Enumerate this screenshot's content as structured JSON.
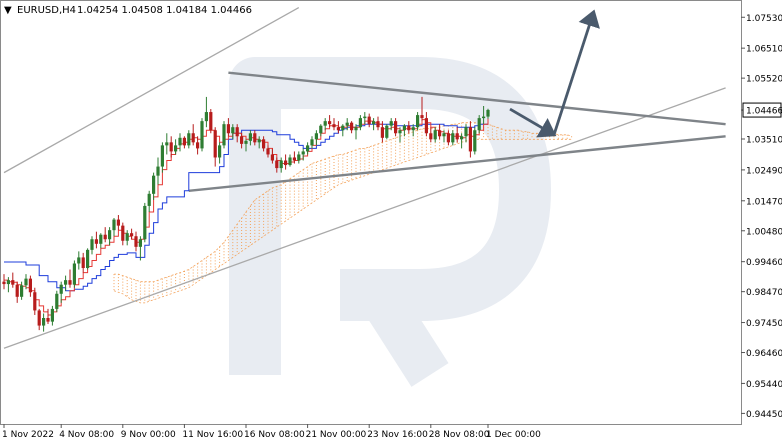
{
  "header": {
    "arrow": "▼",
    "symbol": "EURUSD,H4",
    "ohlc": "1.04254 1.04508 1.04184 1.04466"
  },
  "colors": {
    "bull": "#2e7d32",
    "bear": "#b71c1c",
    "tenkan": "#e53935",
    "kijun": "#1e3ddb",
    "cloud": "#f3a35c",
    "channel": "#a9a9a9",
    "pattern": "#7f8489",
    "arrow": "#4a5a6c",
    "price_box": "#ffffff",
    "watermark": "#e8ecf2"
  },
  "chart_data": {
    "type": "candlestick",
    "symbol": "EURUSD",
    "timeframe": "H4",
    "last_price": 1.04466,
    "ylim": [
      0.941,
      1.081
    ],
    "y_ticks": [
      "1.07530",
      "1.06510",
      "1.05520",
      "1.04466",
      "1.03510",
      "1.02490",
      "1.01470",
      "1.00480",
      "0.99460",
      "0.98470",
      "0.97450",
      "0.96460",
      "0.95440",
      "0.94450"
    ],
    "x_ticks": [
      "1 Nov 2022",
      "4 Nov 08:00",
      "9 Nov 00:00",
      "11 Nov 16:00",
      "16 Nov 08:00",
      "21 Nov 00:00",
      "23 Nov 16:00",
      "28 Nov 08:00",
      "1 Dec 00:00"
    ],
    "x_tick_bars": [
      0,
      13,
      27,
      41,
      55,
      69,
      83,
      97,
      110
    ],
    "candles": [
      [
        0.988,
        0.9905,
        0.9855,
        0.9872
      ],
      [
        0.9872,
        0.9895,
        0.9845,
        0.9885
      ],
      [
        0.9885,
        0.991,
        0.986,
        0.987
      ],
      [
        0.987,
        0.988,
        0.981,
        0.983
      ],
      [
        0.983,
        0.988,
        0.982,
        0.9868
      ],
      [
        0.9868,
        0.9905,
        0.9855,
        0.989
      ],
      [
        0.989,
        0.99,
        0.983,
        0.9845
      ],
      [
        0.9845,
        0.986,
        0.977,
        0.9785
      ],
      [
        0.9785,
        0.979,
        0.972,
        0.9735
      ],
      [
        0.9735,
        0.9775,
        0.9715,
        0.976
      ],
      [
        0.976,
        0.979,
        0.974,
        0.9748
      ],
      [
        0.9748,
        0.98,
        0.9735,
        0.979
      ],
      [
        0.979,
        0.985,
        0.978,
        0.984
      ],
      [
        0.984,
        0.988,
        0.981,
        0.987
      ],
      [
        0.987,
        0.99,
        0.985,
        0.9885
      ],
      [
        0.9885,
        0.992,
        0.986,
        0.987
      ],
      [
        0.987,
        0.995,
        0.986,
        0.994
      ],
      [
        0.994,
        0.998,
        0.992,
        0.996
      ],
      [
        0.996,
        0.9975,
        0.991,
        0.9925
      ],
      [
        0.9925,
        0.999,
        0.992,
        0.9985
      ],
      [
        0.9985,
        1.003,
        0.997,
        1.002
      ],
      [
        1.002,
        1.0045,
        0.999,
        1.0005
      ],
      [
        1.0005,
        1.004,
        0.999,
        1.0035
      ],
      [
        1.0035,
        1.006,
        1.001,
        1.002
      ],
      [
        1.002,
        1.006,
        1.0,
        1.005
      ],
      [
        1.005,
        1.009,
        1.003,
        1.0085
      ],
      [
        1.0085,
        1.01,
        1.005,
        1.0065
      ],
      [
        1.0065,
        1.0075,
        1.0,
        1.0015
      ],
      [
        1.0015,
        1.005,
        1.0,
        1.004
      ],
      [
        1.004,
        1.0055,
        1.002,
        1.003
      ],
      [
        1.003,
        1.0045,
        0.998,
        0.9995
      ],
      [
        0.9995,
        1.003,
        0.995,
        1.002
      ],
      [
        1.002,
        1.014,
        1.001,
        1.013
      ],
      [
        1.013,
        1.018,
        1.011,
        1.017
      ],
      [
        1.017,
        1.024,
        1.015,
        1.023
      ],
      [
        1.023,
        1.029,
        1.02,
        1.026
      ],
      [
        1.026,
        1.034,
        1.024,
        1.033
      ],
      [
        1.033,
        1.037,
        1.03,
        1.034
      ],
      [
        1.034,
        1.036,
        1.029,
        1.031
      ],
      [
        1.031,
        1.035,
        1.03,
        1.033
      ],
      [
        1.033,
        1.037,
        1.031,
        1.0355
      ],
      [
        1.0355,
        1.036,
        1.032,
        1.033
      ],
      [
        1.033,
        1.038,
        1.032,
        1.037
      ],
      [
        1.037,
        1.04,
        1.033,
        1.034
      ],
      [
        1.034,
        1.036,
        1.03,
        1.032
      ],
      [
        1.032,
        1.042,
        1.031,
        1.041
      ],
      [
        1.041,
        1.049,
        1.039,
        1.044
      ],
      [
        1.044,
        1.045,
        1.037,
        1.038
      ],
      [
        1.038,
        1.039,
        1.026,
        1.029
      ],
      [
        1.029,
        1.034,
        1.027,
        1.033
      ],
      [
        1.033,
        1.041,
        1.032,
        1.04
      ],
      [
        1.04,
        1.042,
        1.036,
        1.037
      ],
      [
        1.037,
        1.04,
        1.035,
        1.039
      ],
      [
        1.039,
        1.04,
        1.034,
        1.036
      ],
      [
        1.036,
        1.037,
        1.032,
        1.0335
      ],
      [
        1.0335,
        1.035,
        1.031,
        1.0345
      ],
      [
        1.0345,
        1.038,
        1.033,
        1.037
      ],
      [
        1.037,
        1.038,
        1.033,
        1.034
      ],
      [
        1.034,
        1.036,
        1.032,
        1.035
      ],
      [
        1.035,
        1.036,
        1.031,
        1.032
      ],
      [
        1.032,
        1.033,
        1.029,
        1.03
      ],
      [
        1.03,
        1.032,
        1.027,
        1.028
      ],
      [
        1.028,
        1.029,
        1.024,
        1.0255
      ],
      [
        1.0255,
        1.029,
        1.024,
        1.028
      ],
      [
        1.028,
        1.03,
        1.025,
        1.0265
      ],
      [
        1.0265,
        1.03,
        1.026,
        1.029
      ],
      [
        1.029,
        1.031,
        1.027,
        1.028
      ],
      [
        1.028,
        1.031,
        1.027,
        1.03
      ],
      [
        1.03,
        1.032,
        1.028,
        1.031
      ],
      [
        1.031,
        1.034,
        1.03,
        1.033
      ],
      [
        1.033,
        1.036,
        1.032,
        1.035
      ],
      [
        1.035,
        1.038,
        1.033,
        1.037
      ],
      [
        1.037,
        1.04,
        1.036,
        1.0395
      ],
      [
        1.0395,
        1.042,
        1.038,
        1.041
      ],
      [
        1.041,
        1.043,
        1.039,
        1.04
      ],
      [
        1.04,
        1.042,
        1.038,
        1.039
      ],
      [
        1.039,
        1.041,
        1.037,
        1.038
      ],
      [
        1.038,
        1.04,
        1.036,
        1.0395
      ],
      [
        1.0395,
        1.042,
        1.038,
        1.0405
      ],
      [
        1.0405,
        1.041,
        1.037,
        1.038
      ],
      [
        1.038,
        1.04,
        1.035,
        1.039
      ],
      [
        1.039,
        1.043,
        1.038,
        1.042
      ],
      [
        1.042,
        1.044,
        1.04,
        1.0425
      ],
      [
        1.0425,
        1.0435,
        1.039,
        1.04
      ],
      [
        1.04,
        1.042,
        1.038,
        1.041
      ],
      [
        1.041,
        1.0425,
        1.038,
        1.039
      ],
      [
        1.039,
        1.041,
        1.034,
        1.0355
      ],
      [
        1.0355,
        1.04,
        1.035,
        1.0395
      ],
      [
        1.0395,
        1.042,
        1.038,
        1.041
      ],
      [
        1.041,
        1.042,
        1.036,
        1.037
      ],
      [
        1.037,
        1.039,
        1.034,
        1.038
      ],
      [
        1.038,
        1.04,
        1.036,
        1.0395
      ],
      [
        1.0395,
        1.041,
        1.037,
        1.038
      ],
      [
        1.038,
        1.04,
        1.036,
        1.039
      ],
      [
        1.039,
        1.044,
        1.038,
        1.043
      ],
      [
        1.043,
        1.049,
        1.041,
        1.042
      ],
      [
        1.042,
        1.044,
        1.036,
        1.037
      ],
      [
        1.037,
        1.039,
        1.034,
        1.035
      ],
      [
        1.035,
        1.039,
        1.034,
        1.038
      ],
      [
        1.038,
        1.04,
        1.035,
        1.036
      ],
      [
        1.036,
        1.038,
        1.034,
        1.037
      ],
      [
        1.037,
        1.038,
        1.033,
        1.034
      ],
      [
        1.034,
        1.038,
        1.033,
        1.037
      ],
      [
        1.037,
        1.039,
        1.034,
        1.035
      ],
      [
        1.035,
        1.037,
        1.032,
        1.036
      ],
      [
        1.036,
        1.04,
        1.034,
        1.039
      ],
      [
        1.039,
        1.041,
        1.029,
        1.031
      ],
      [
        1.031,
        1.039,
        1.03,
        1.038
      ],
      [
        1.038,
        1.043,
        1.037,
        1.042
      ],
      [
        1.042,
        1.046,
        1.04,
        1.0425
      ],
      [
        1.0425,
        1.0451,
        1.0418,
        1.0447
      ]
    ],
    "tenkan": [
      0.9885,
      0.988,
      0.9878,
      0.987,
      0.9865,
      0.986,
      0.985,
      0.982,
      0.98,
      0.978,
      0.977,
      0.978,
      0.98,
      0.982,
      0.983,
      0.985,
      0.987,
      0.989,
      0.991,
      0.993,
      0.995,
      0.997,
      0.999,
      1.0,
      1.001,
      1.003,
      1.005,
      1.004,
      1.003,
      1.002,
      1.001,
      1.002,
      1.006,
      1.011,
      1.016,
      1.02,
      1.025,
      1.028,
      1.03,
      1.032,
      1.0335,
      1.034,
      1.035,
      1.0355,
      1.035,
      1.036,
      1.038,
      1.038,
      1.036,
      1.034,
      1.035,
      1.036,
      1.037,
      1.037,
      1.036,
      1.035,
      1.0355,
      1.035,
      1.0345,
      1.034,
      1.032,
      1.03,
      1.028,
      1.027,
      1.027,
      1.0275,
      1.028,
      1.0285,
      1.0295,
      1.031,
      1.033,
      1.035,
      1.037,
      1.0385,
      1.0395,
      1.0395,
      1.039,
      1.039,
      1.0395,
      1.039,
      1.039,
      1.04,
      1.041,
      1.041,
      1.0405,
      1.04,
      1.0385,
      1.0385,
      1.039,
      1.0385,
      1.038,
      1.0385,
      1.0385,
      1.0385,
      1.04,
      1.0415,
      1.0405,
      1.039,
      1.038,
      1.0375,
      1.037,
      1.0365,
      1.036,
      1.036,
      1.0355,
      1.0365,
      1.036,
      1.0365,
      1.038,
      1.04,
      1.042
    ],
    "kijun": [
      0.9945,
      0.9945,
      0.9945,
      0.9945,
      0.9945,
      0.9935,
      0.9935,
      0.9935,
      0.99,
      0.99,
      0.988,
      0.988,
      0.986,
      0.986,
      0.985,
      0.985,
      0.9855,
      0.9855,
      0.9865,
      0.9875,
      0.989,
      0.99,
      0.992,
      0.993,
      0.995,
      0.996,
      0.997,
      0.997,
      0.9975,
      0.9975,
      0.996,
      0.996,
      1.0,
      1.004,
      1.0075,
      1.012,
      1.014,
      1.016,
      1.016,
      1.016,
      1.016,
      1.018,
      1.024,
      1.024,
      1.024,
      1.024,
      1.024,
      1.024,
      1.024,
      1.026,
      1.03,
      1.035,
      1.037,
      1.037,
      1.038,
      1.038,
      1.038,
      1.038,
      1.038,
      1.038,
      1.038,
      1.0375,
      1.0365,
      1.0365,
      1.0365,
      1.035,
      1.034,
      1.033,
      1.032,
      1.032,
      1.032,
      1.033,
      1.034,
      1.035,
      1.036,
      1.037,
      1.038,
      1.0385,
      1.039,
      1.039,
      1.0395,
      1.0395,
      1.04,
      1.04,
      1.04,
      1.04,
      1.04,
      1.04,
      1.04,
      1.0395,
      1.0395,
      1.0395,
      1.0395,
      1.0395,
      1.0395,
      1.04,
      1.04,
      1.04,
      1.04,
      1.04,
      1.0395,
      1.0395,
      1.0395,
      1.039,
      1.039,
      1.039,
      1.039,
      1.0395,
      1.04,
      1.04,
      1.04
    ],
    "cloud": {
      "start_bar": 25,
      "upper": [
        0.9905,
        0.9905,
        0.99,
        0.9895,
        0.989,
        0.9885,
        0.988,
        0.988,
        0.988,
        0.988,
        0.9885,
        0.989,
        0.9895,
        0.99,
        0.9905,
        0.991,
        0.9915,
        0.992,
        0.993,
        0.994,
        0.995,
        0.996,
        0.997,
        0.998,
        0.9995,
        1.001,
        1.003,
        1.005,
        1.007,
        1.009,
        1.011,
        1.013,
        1.015,
        1.016,
        1.017,
        1.018,
        1.019,
        1.0195,
        1.02,
        1.021,
        1.022,
        1.023,
        1.024,
        1.025,
        1.026,
        1.027,
        1.0275,
        1.028,
        1.0285,
        1.029,
        1.0295,
        1.03,
        1.03,
        1.0305,
        1.031,
        1.0315,
        1.032,
        1.032,
        1.0325,
        1.033,
        1.0335,
        1.034,
        1.0345,
        1.035,
        1.0355,
        1.036,
        1.0365,
        1.037,
        1.0375,
        1.038,
        1.0385,
        1.0385,
        1.0385,
        1.039,
        1.039,
        1.0395,
        1.0395,
        1.04,
        1.04,
        1.0405,
        1.0405,
        1.0405,
        1.0405,
        1.0405,
        1.04,
        1.04,
        1.0395,
        1.039,
        1.0385,
        1.038,
        1.038,
        1.038,
        1.038,
        1.0375,
        1.0375,
        1.037,
        1.037,
        1.037,
        1.037,
        1.037,
        1.037,
        1.0365,
        1.0365,
        1.0365,
        1.036
      ],
      "lower": [
        0.985,
        0.9845,
        0.984,
        0.983,
        0.982,
        0.9815,
        0.981,
        0.981,
        0.9815,
        0.982,
        0.9825,
        0.983,
        0.9835,
        0.984,
        0.9845,
        0.985,
        0.9855,
        0.986,
        0.987,
        0.988,
        0.989,
        0.99,
        0.991,
        0.992,
        0.993,
        0.994,
        0.995,
        0.996,
        0.997,
        0.998,
        0.999,
        1.0,
        1.001,
        1.002,
        1.003,
        1.004,
        1.005,
        1.006,
        1.007,
        1.008,
        1.009,
        1.01,
        1.011,
        1.012,
        1.013,
        1.014,
        1.015,
        1.016,
        1.017,
        1.018,
        1.019,
        1.02,
        1.0205,
        1.021,
        1.0215,
        1.022,
        1.0225,
        1.023,
        1.0235,
        1.024,
        1.0245,
        1.025,
        1.0255,
        1.026,
        1.0265,
        1.027,
        1.0275,
        1.028,
        1.0285,
        1.029,
        1.0295,
        1.03,
        1.0305,
        1.031,
        1.0315,
        1.032,
        1.0325,
        1.033,
        1.0335,
        1.034,
        1.0345,
        1.0345,
        1.035,
        1.035,
        1.035,
        1.035,
        1.035,
        1.035,
        1.035,
        1.035,
        1.035,
        1.035,
        1.035,
        1.035,
        1.035,
        1.035,
        1.035,
        1.035,
        1.035,
        1.035,
        1.035,
        1.035,
        1.035,
        1.035,
        1.035
      ]
    },
    "lines": {
      "channel_upper": [
        [
          0,
          1.024
        ],
        [
          67,
          1.0785
        ]
      ],
      "channel_lower": [
        [
          0,
          0.966
        ],
        [
          164,
          1.052
        ]
      ],
      "triangle_upper": [
        [
          51,
          1.057
        ],
        [
          164,
          1.04
        ]
      ],
      "triangle_lower": [
        [
          42,
          1.018
        ],
        [
          164,
          1.036
        ]
      ],
      "arrow_down": [
        [
          115,
          1.045
        ],
        [
          125,
          1.0365
        ]
      ],
      "arrow_up": [
        [
          125,
          1.0365
        ],
        [
          134,
          1.077
        ]
      ]
    }
  }
}
